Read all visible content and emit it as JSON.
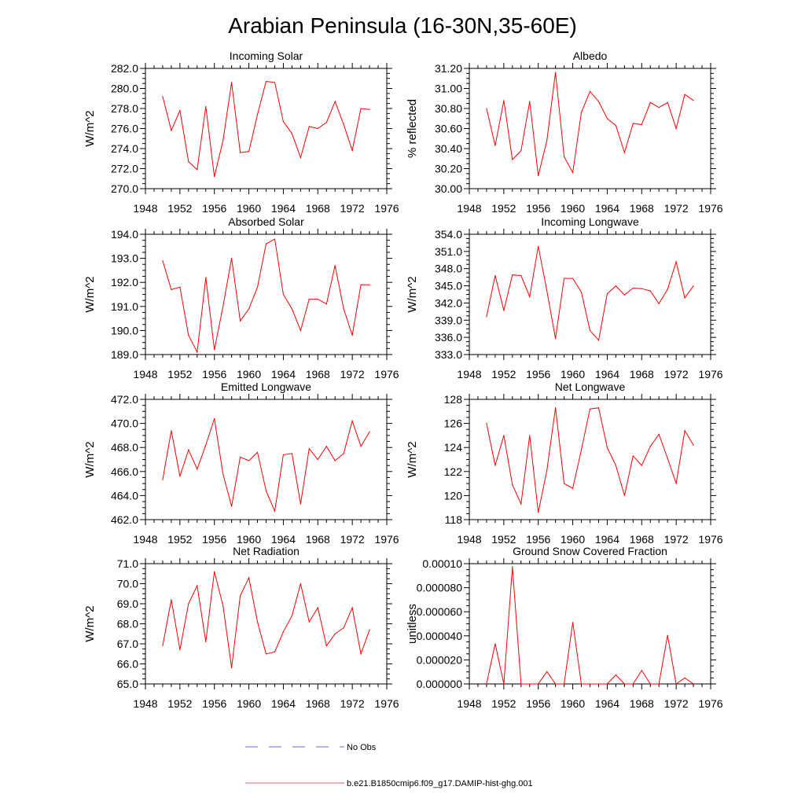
{
  "figure": {
    "title": "Arabian Peninsula (16-30N,35-60E)"
  },
  "legend": [
    {
      "label": "No Obs",
      "color": "#6a6ad8",
      "dashed": true
    },
    {
      "label": "b.e21.B1850cmip6.f09_g17.DAMIP-hist-ghg.001",
      "color": "#e06060",
      "dashed": false
    }
  ],
  "colors": {
    "series": "#ff0000",
    "axis": "#000000"
  },
  "chart_data": [
    {
      "type": "line",
      "title": "Incoming Solar",
      "ylabel": "W/m^2",
      "xlim": [
        1948,
        1976
      ],
      "xticks": [
        "1948",
        "1952",
        "1956",
        "1960",
        "1964",
        "1968",
        "1972",
        "1976"
      ],
      "ylim": [
        270,
        282
      ],
      "yticks": [
        "270.0",
        "272.0",
        "274.0",
        "276.0",
        "278.0",
        "280.0",
        "282.0"
      ],
      "x": [
        1950,
        1951,
        1952,
        1953,
        1954,
        1955,
        1956,
        1957,
        1958,
        1959,
        1960,
        1961,
        1962,
        1963,
        1964,
        1965,
        1966,
        1967,
        1968,
        1969,
        1970,
        1971,
        1972,
        1973,
        1974
      ],
      "series": [
        {
          "values": [
            279.2,
            275.8,
            277.8,
            272.7,
            271.9,
            278.2,
            271.2,
            274.8,
            280.6,
            273.6,
            273.7,
            277.4,
            280.7,
            280.6,
            276.7,
            275.5,
            273.1,
            276.2,
            276.0,
            276.6,
            278.7,
            276.4,
            273.8,
            278.0,
            277.9
          ]
        }
      ]
    },
    {
      "type": "line",
      "title": "Albedo",
      "ylabel": "% reflected",
      "xlim": [
        1948,
        1976
      ],
      "xticks": [
        "1948",
        "1952",
        "1956",
        "1960",
        "1964",
        "1968",
        "1972",
        "1976"
      ],
      "ylim": [
        30.0,
        31.2
      ],
      "yticks": [
        "30.00",
        "30.20",
        "30.40",
        "30.60",
        "30.80",
        "31.00",
        "31.20"
      ],
      "x": [
        1950,
        1951,
        1952,
        1953,
        1954,
        1955,
        1956,
        1957,
        1958,
        1959,
        1960,
        1961,
        1962,
        1963,
        1964,
        1965,
        1966,
        1967,
        1968,
        1969,
        1970,
        1971,
        1972,
        1973,
        1974
      ],
      "series": [
        {
          "values": [
            30.8,
            30.43,
            30.88,
            30.29,
            30.38,
            30.87,
            30.13,
            30.48,
            31.16,
            30.32,
            30.16,
            30.76,
            30.97,
            30.87,
            30.7,
            30.63,
            30.36,
            30.65,
            30.64,
            30.86,
            30.81,
            30.86,
            30.6,
            30.94,
            30.88
          ]
        }
      ]
    },
    {
      "type": "line",
      "title": "Absorbed Solar",
      "ylabel": "W/m^2",
      "xlim": [
        1948,
        1976
      ],
      "xticks": [
        "1948",
        "1952",
        "1956",
        "1960",
        "1964",
        "1968",
        "1972",
        "1976"
      ],
      "ylim": [
        189,
        194
      ],
      "yticks": [
        "189.0",
        "190.0",
        "191.0",
        "192.0",
        "193.0",
        "194.0"
      ],
      "x": [
        1950,
        1951,
        1952,
        1953,
        1954,
        1955,
        1956,
        1957,
        1958,
        1959,
        1960,
        1961,
        1962,
        1963,
        1964,
        1965,
        1966,
        1967,
        1968,
        1969,
        1970,
        1971,
        1972,
        1973,
        1974
      ],
      "series": [
        {
          "values": [
            192.9,
            191.7,
            191.8,
            189.8,
            189.1,
            192.2,
            189.2,
            191.0,
            193.0,
            190.4,
            190.9,
            191.8,
            193.6,
            193.8,
            191.5,
            190.9,
            190.0,
            191.3,
            191.3,
            191.1,
            192.7,
            190.9,
            189.8,
            191.9,
            191.9
          ]
        }
      ]
    },
    {
      "type": "line",
      "title": "Incoming Longwave",
      "ylabel": "W/m^2",
      "xlim": [
        1948,
        1976
      ],
      "xticks": [
        "1948",
        "1952",
        "1956",
        "1960",
        "1964",
        "1968",
        "1972",
        "1976"
      ],
      "ylim": [
        333,
        354
      ],
      "yticks": [
        "333.0",
        "336.0",
        "339.0",
        "342.0",
        "345.0",
        "348.0",
        "351.0",
        "354.0"
      ],
      "x": [
        1950,
        1951,
        1952,
        1953,
        1954,
        1955,
        1956,
        1957,
        1958,
        1959,
        1960,
        1961,
        1962,
        1963,
        1964,
        1965,
        1966,
        1967,
        1968,
        1969,
        1970,
        1971,
        1972,
        1973,
        1974
      ],
      "series": [
        {
          "values": [
            339.6,
            346.8,
            340.7,
            346.9,
            346.8,
            343.1,
            351.9,
            344.1,
            335.8,
            346.3,
            346.3,
            343.9,
            337.2,
            335.5,
            343.6,
            345.0,
            343.4,
            344.6,
            344.5,
            344.1,
            341.9,
            344.4,
            349.2,
            342.9,
            345.0
          ]
        }
      ]
    },
    {
      "type": "line",
      "title": "Emitted Longwave",
      "ylabel": "W/m^2",
      "xlim": [
        1948,
        1976
      ],
      "xticks": [
        "1948",
        "1952",
        "1956",
        "1960",
        "1964",
        "1968",
        "1972",
        "1976"
      ],
      "ylim": [
        462,
        472
      ],
      "yticks": [
        "462.0",
        "464.0",
        "466.0",
        "468.0",
        "470.0",
        "472.0"
      ],
      "x": [
        1950,
        1951,
        1952,
        1953,
        1954,
        1955,
        1956,
        1957,
        1958,
        1959,
        1960,
        1961,
        1962,
        1963,
        1964,
        1965,
        1966,
        1967,
        1968,
        1969,
        1970,
        1971,
        1972,
        1973,
        1974
      ],
      "series": [
        {
          "values": [
            465.3,
            469.4,
            465.6,
            467.8,
            466.2,
            468.2,
            470.4,
            465.8,
            463.1,
            467.2,
            466.9,
            467.6,
            464.4,
            462.7,
            467.4,
            467.5,
            463.3,
            467.9,
            467.0,
            468.1,
            466.9,
            467.5,
            470.2,
            468.1,
            469.3
          ]
        }
      ]
    },
    {
      "type": "line",
      "title": "Net Longwave",
      "ylabel": "W/m^2",
      "xlim": [
        1948,
        1976
      ],
      "xticks": [
        "1948",
        "1952",
        "1956",
        "1960",
        "1964",
        "1968",
        "1972",
        "1976"
      ],
      "ylim": [
        118,
        128
      ],
      "yticks": [
        "118",
        "120",
        "122",
        "124",
        "126",
        "128"
      ],
      "x": [
        1950,
        1951,
        1952,
        1953,
        1954,
        1955,
        1956,
        1957,
        1958,
        1959,
        1960,
        1961,
        1962,
        1963,
        1964,
        1965,
        1966,
        1967,
        1968,
        1969,
        1970,
        1971,
        1972,
        1973,
        1974
      ],
      "series": [
        {
          "values": [
            126.0,
            122.5,
            125.0,
            120.9,
            119.3,
            125.0,
            118.6,
            122.1,
            127.3,
            121.0,
            120.6,
            123.8,
            127.2,
            127.3,
            124.0,
            122.5,
            120.0,
            123.3,
            122.5,
            124.1,
            125.1,
            123.1,
            121.0,
            125.4,
            124.2
          ]
        }
      ]
    },
    {
      "type": "line",
      "title": "Net Radiation",
      "ylabel": "W/m^2",
      "xlim": [
        1948,
        1976
      ],
      "xticks": [
        "1948",
        "1952",
        "1956",
        "1960",
        "1964",
        "1968",
        "1972",
        "1976"
      ],
      "ylim": [
        65,
        71
      ],
      "yticks": [
        "65.0",
        "66.0",
        "67.0",
        "68.0",
        "69.0",
        "70.0",
        "71.0"
      ],
      "x": [
        1950,
        1951,
        1952,
        1953,
        1954,
        1955,
        1956,
        1957,
        1958,
        1959,
        1960,
        1961,
        1962,
        1963,
        1964,
        1965,
        1966,
        1967,
        1968,
        1969,
        1970,
        1971,
        1972,
        1973,
        1974
      ],
      "series": [
        {
          "values": [
            66.9,
            69.2,
            66.7,
            69.0,
            69.9,
            67.1,
            70.6,
            68.9,
            65.8,
            69.4,
            70.3,
            68.1,
            66.5,
            66.6,
            67.6,
            68.4,
            70.0,
            68.1,
            68.8,
            66.9,
            67.5,
            67.8,
            68.8,
            66.5,
            67.7
          ]
        }
      ]
    },
    {
      "type": "line",
      "title": "Ground Snow Covered Fraction",
      "ylabel": "unitless",
      "xlim": [
        1948,
        1976
      ],
      "xticks": [
        "1948",
        "1952",
        "1956",
        "1960",
        "1964",
        "1968",
        "1972",
        "1976"
      ],
      "ylim": [
        0,
        0.0001
      ],
      "yticks": [
        "0.000000",
        "0.000020",
        "0.000040",
        "0.000060",
        "0.000080",
        "0.00010"
      ],
      "x": [
        1950,
        1951,
        1952,
        1953,
        1954,
        1955,
        1956,
        1957,
        1958,
        1959,
        1960,
        1961,
        1962,
        1963,
        1964,
        1965,
        1966,
        1967,
        1968,
        1969,
        1970,
        1971,
        1972,
        1973,
        1974
      ],
      "series": [
        {
          "values": [
            0,
            3.34e-05,
            0,
            9.74e-05,
            0,
            0,
            0,
            1.03e-05,
            0,
            0,
            5.12e-05,
            0,
            0,
            0,
            0,
            7.5e-06,
            0,
            0,
            1.12e-05,
            0,
            0,
            4.04e-05,
            0,
            5e-06,
            0
          ]
        }
      ]
    }
  ]
}
